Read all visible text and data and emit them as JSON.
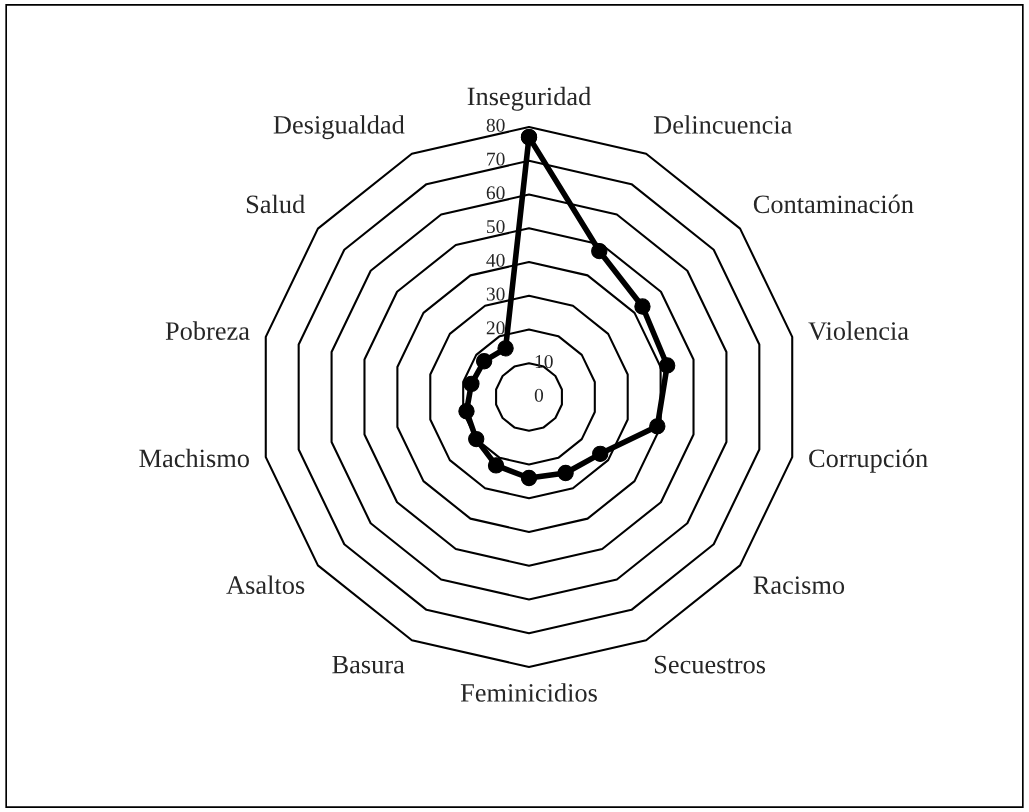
{
  "chart_data": {
    "type": "radar",
    "categories": [
      "Inseguridad",
      "Delincuencia",
      "Contaminación",
      "Violencia",
      "Corrupción",
      "Racismo",
      "Secuestros",
      "Feminicidios",
      "Basura",
      "Asaltos",
      "Machismo",
      "Pobreza",
      "Salud",
      "Desigualdad"
    ],
    "series": [
      {
        "color": "#000000",
        "values": [
          77,
          48,
          43,
          42,
          39,
          27,
          25,
          24,
          22.5,
          20,
          19,
          17.5,
          17,
          16
        ]
      }
    ],
    "ylim": [
      0,
      80
    ],
    "yticks": [
      0,
      10,
      20,
      30,
      40,
      50,
      60,
      70,
      80
    ],
    "grid": true,
    "marker": "circle",
    "line_style": "solid"
  }
}
